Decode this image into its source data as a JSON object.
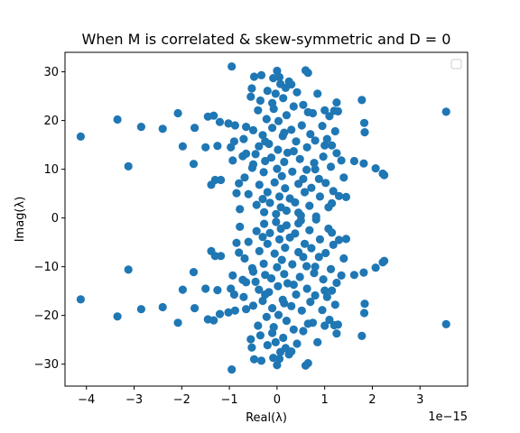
{
  "chart_data": {
    "type": "scatter",
    "title": "When M is correlated & skew-symmetric and D = 0",
    "xlabel": "Real(λ)",
    "ylabel": "Imag(λ)",
    "x_offset_label": "1e−15",
    "xlim": [
      -4.45,
      4.0
    ],
    "ylim": [
      -34.5,
      34.0
    ],
    "xticks": [
      -4,
      -3,
      -2,
      -1,
      0,
      1,
      2,
      3
    ],
    "xtick_labels": [
      "−4",
      "−3",
      "−2",
      "−1",
      "0",
      "1",
      "2",
      "3"
    ],
    "yticks": [
      -30,
      -20,
      -10,
      0,
      10,
      20,
      30
    ],
    "ytick_labels": [
      "−30",
      "−20",
      "−10",
      "0",
      "10",
      "20",
      "30"
    ],
    "x_scale_factor": 1e-15,
    "grid": false,
    "legend": {
      "placement": "upper right",
      "entries": []
    },
    "marker_color": "#1f77b4",
    "symmetric_about_x_axis": true,
    "upper_half_points": [
      [
        -4.12,
        16.7
      ],
      [
        -3.35,
        20.2
      ],
      [
        -3.12,
        10.6
      ],
      [
        -2.85,
        18.7
      ],
      [
        -2.4,
        18.3
      ],
      [
        -2.08,
        21.5
      ],
      [
        -1.98,
        14.7
      ],
      [
        -1.75,
        11.1
      ],
      [
        -1.73,
        18.5
      ],
      [
        -1.5,
        14.5
      ],
      [
        -1.45,
        20.8
      ],
      [
        -1.38,
        6.8
      ],
      [
        -1.33,
        21.0
      ],
      [
        -1.3,
        7.8
      ],
      [
        -1.25,
        14.8
      ],
      [
        -1.2,
        19.7
      ],
      [
        -1.18,
        7.8
      ],
      [
        -1.02,
        19.4
      ],
      [
        -0.97,
        14.5
      ],
      [
        -0.95,
        31.1
      ],
      [
        -0.93,
        11.8
      ],
      [
        -0.9,
        15.7
      ],
      [
        -0.88,
        19.0
      ],
      [
        -0.85,
        5.1
      ],
      [
        -0.8,
        7.1
      ],
      [
        -0.78,
        1.8
      ],
      [
        -0.72,
        12.7
      ],
      [
        -0.7,
        16.2
      ],
      [
        -0.68,
        8.3
      ],
      [
        -0.65,
        13.2
      ],
      [
        -0.6,
        4.9
      ],
      [
        -0.55,
        24.9
      ],
      [
        -0.53,
        26.6
      ],
      [
        -0.52,
        10.3
      ],
      [
        -0.5,
        18.0
      ],
      [
        -0.48,
        29.0
      ],
      [
        -0.45,
        13.1
      ],
      [
        -0.43,
        2.7
      ],
      [
        -0.4,
        22.1
      ],
      [
        -0.38,
        14.7
      ],
      [
        -0.37,
        6.8
      ],
      [
        -0.35,
        24.1
      ],
      [
        -0.33,
        29.3
      ],
      [
        -0.3,
        17.0
      ],
      [
        -0.28,
        9.4
      ],
      [
        -0.27,
        1.2
      ],
      [
        -0.25,
        11.7
      ],
      [
        -0.22,
        20.3
      ],
      [
        -0.2,
        26.1
      ],
      [
        -0.2,
        5.3
      ],
      [
        -0.17,
        15.2
      ],
      [
        -0.15,
        3.1
      ],
      [
        -0.12,
        12.4
      ],
      [
        -0.1,
        18.5
      ],
      [
        -0.08,
        28.7
      ],
      [
        -0.07,
        22.4
      ],
      [
        -0.05,
        7.3
      ],
      [
        -0.03,
        25.5
      ],
      [
        -0.02,
        0.8
      ],
      [
        0.0,
        30.2
      ],
      [
        0.0,
        10.1
      ],
      [
        0.02,
        14.0
      ],
      [
        0.03,
        19.9
      ],
      [
        0.05,
        4.4
      ],
      [
        0.07,
        27.5
      ],
      [
        0.08,
        2.2
      ],
      [
        0.1,
        8.6
      ],
      [
        0.12,
        16.8
      ],
      [
        0.13,
        24.6
      ],
      [
        0.15,
        11.5
      ],
      [
        0.17,
        6.1
      ],
      [
        0.18,
        26.7
      ],
      [
        0.2,
        1.5
      ],
      [
        0.2,
        21.1
      ],
      [
        0.22,
        13.4
      ],
      [
        0.25,
        28.0
      ],
      [
        0.27,
        4.0
      ],
      [
        0.3,
        18.1
      ],
      [
        0.32,
        9.5
      ],
      [
        0.35,
        22.9
      ],
      [
        0.38,
        3.2
      ],
      [
        0.4,
        15.7
      ],
      [
        0.42,
        25.8
      ],
      [
        0.45,
        7.0
      ],
      [
        0.48,
        12.1
      ],
      [
        0.5,
        0.5
      ],
      [
        0.52,
        19.0
      ],
      [
        0.55,
        23.2
      ],
      [
        0.58,
        5.3
      ],
      [
        0.6,
        30.3
      ],
      [
        0.62,
        9.9
      ],
      [
        0.63,
        14.5
      ],
      [
        0.65,
        29.8
      ],
      [
        0.68,
        2.5
      ],
      [
        0.7,
        17.2
      ],
      [
        0.72,
        6.2
      ],
      [
        0.75,
        21.5
      ],
      [
        0.78,
        11.3
      ],
      [
        0.8,
        15.9
      ],
      [
        0.82,
        0.3
      ],
      [
        0.85,
        25.5
      ],
      [
        0.88,
        8.0
      ],
      [
        0.9,
        4.4
      ],
      [
        0.95,
        18.9
      ],
      [
        0.97,
        12.6
      ],
      [
        1.0,
        22.1
      ],
      [
        1.02,
        7.2
      ],
      [
        1.05,
        16.2
      ],
      [
        1.08,
        2.2
      ],
      [
        1.1,
        20.9
      ],
      [
        1.13,
        10.5
      ],
      [
        1.15,
        14.9
      ],
      [
        1.18,
        5.5
      ],
      [
        1.2,
        22.0
      ],
      [
        1.22,
        17.8
      ],
      [
        1.25,
        13.3
      ],
      [
        1.25,
        23.7
      ],
      [
        1.28,
        21.9
      ],
      [
        1.3,
        4.5
      ],
      [
        1.35,
        11.8
      ],
      [
        1.4,
        8.3
      ],
      [
        1.45,
        4.3
      ],
      [
        1.62,
        11.7
      ],
      [
        1.78,
        24.2
      ],
      [
        1.82,
        11.2
      ],
      [
        1.83,
        19.5
      ],
      [
        1.84,
        17.6
      ],
      [
        2.07,
        10.2
      ],
      [
        2.22,
        9.1
      ],
      [
        2.25,
        8.8
      ],
      [
        -0.25,
        15.7
      ],
      [
        0.45,
        1.1
      ],
      [
        0.05,
        28.9
      ],
      [
        0.3,
        27.4
      ],
      [
        -0.5,
        11.0
      ],
      [
        0.65,
        21.7
      ],
      [
        1.0,
        14.9
      ],
      [
        0.15,
        17.5
      ],
      [
        -0.3,
        3.9
      ],
      [
        0.8,
        10.0
      ],
      [
        -0.1,
        23.6
      ],
      [
        0.55,
        8.0
      ],
      [
        1.15,
        3.0
      ],
      [
        -0.65,
        18.7
      ],
      [
        0.35,
        13.7
      ],
      [
        3.55,
        21.8
      ]
    ]
  }
}
